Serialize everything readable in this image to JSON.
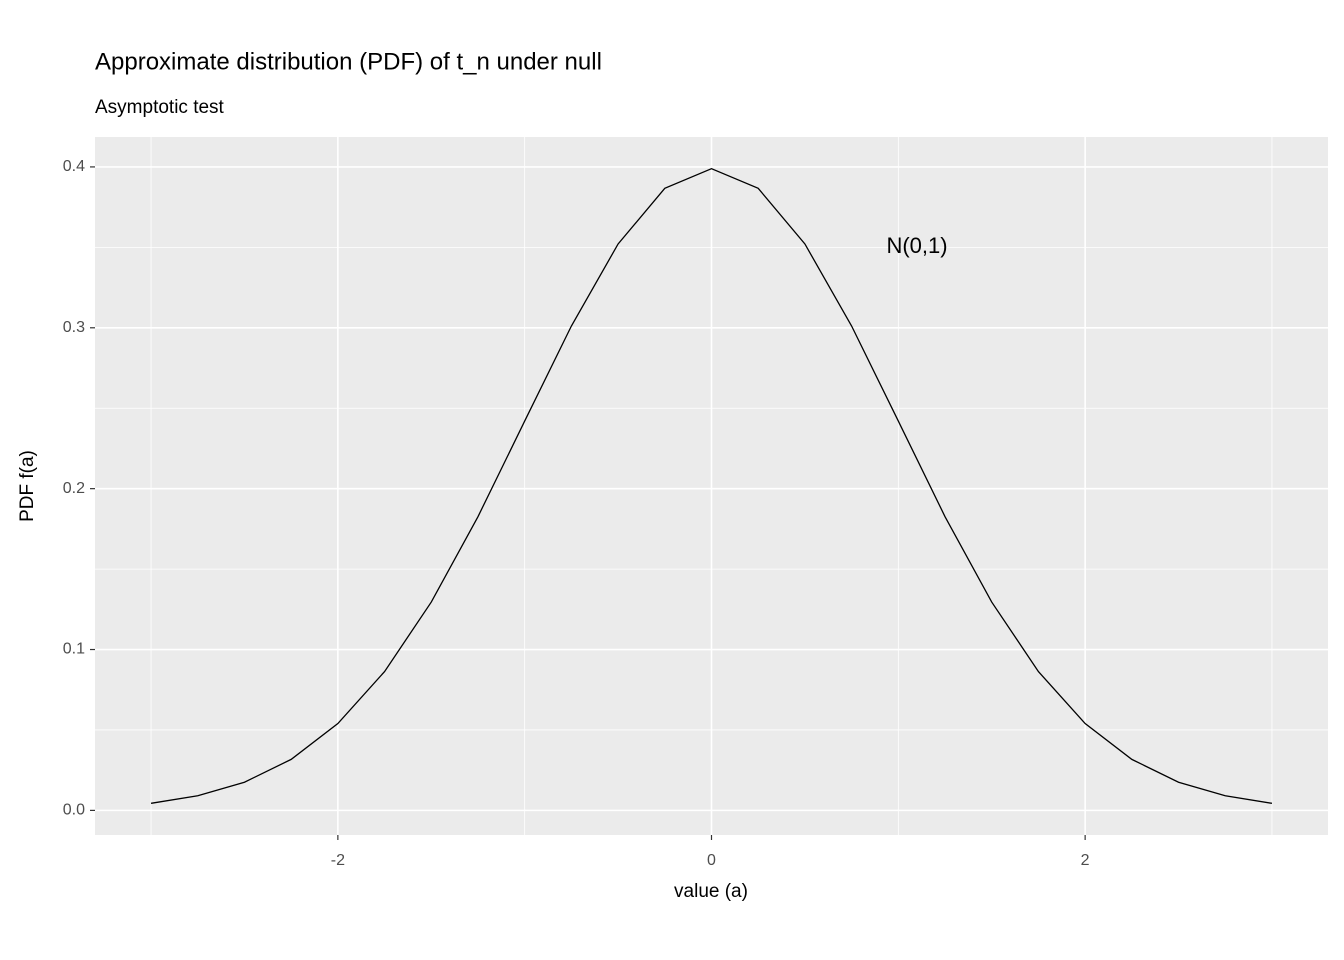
{
  "chart_data": {
    "type": "line",
    "title": "Approximate distribution (PDF) of t_n under null",
    "subtitle": "Asymptotic test",
    "x_label": "value (a)",
    "y_label": "PDF f(a)",
    "x": [
      -3,
      -2.75,
      -2.5,
      -2.25,
      -2,
      -1.75,
      -1.5,
      -1.25,
      -1,
      -0.75,
      -0.5,
      -0.25,
      0,
      0.25,
      0.5,
      0.75,
      1,
      1.25,
      1.5,
      1.75,
      2,
      2.25,
      2.5,
      2.75,
      3
    ],
    "values": [
      0.0044,
      0.0091,
      0.0175,
      0.0317,
      0.054,
      0.0863,
      0.1295,
      0.1826,
      0.242,
      0.3011,
      0.3521,
      0.3867,
      0.3989,
      0.3867,
      0.3521,
      0.3011,
      0.242,
      0.1826,
      0.1295,
      0.0863,
      0.054,
      0.0317,
      0.0175,
      0.0091,
      0.0044
    ],
    "color": "#000000",
    "xlim": [
      -3.3,
      3.3
    ],
    "ylim": [
      -0.0153,
      0.4186
    ],
    "xticks": [
      -2,
      0,
      2
    ],
    "yticks": [
      {
        "value": 0,
        "label": "0.0"
      },
      0.1,
      0.2,
      0.3,
      0.4
    ],
    "x_minor_grid": [
      -3,
      -1,
      1,
      3
    ],
    "y_minor_grid": [
      0.05,
      0.15,
      0.25,
      0.35
    ],
    "grid": true,
    "annotation": {
      "text": "N(0,1)",
      "x": 1.1,
      "y": 0.35
    }
  }
}
